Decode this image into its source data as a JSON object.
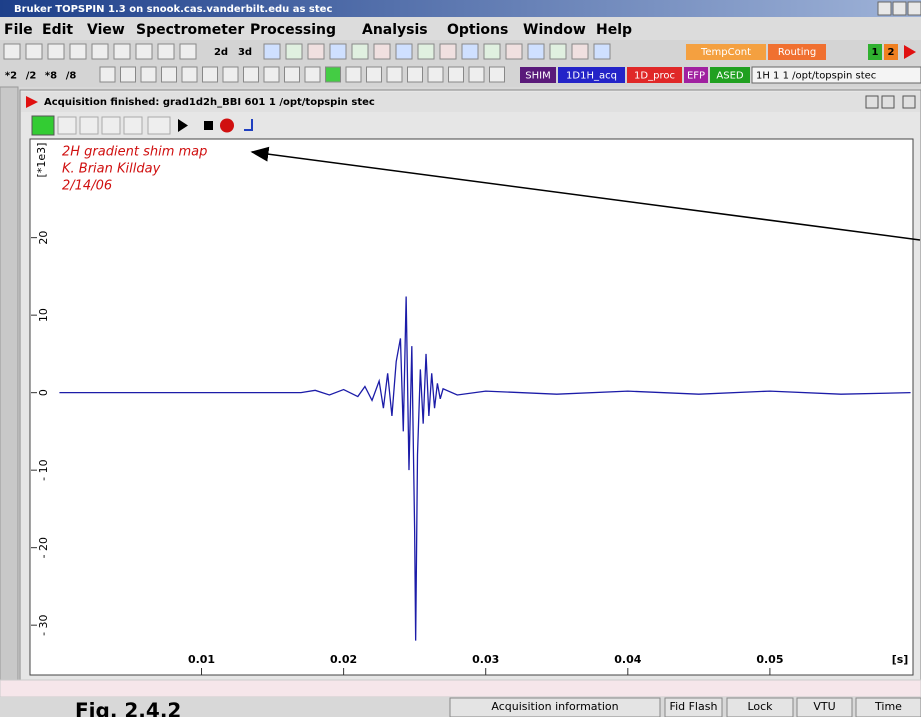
{
  "window": {
    "title": "Bruker TOPSPIN 1.3 on snook.cas.vanderbilt.edu as stec"
  },
  "menu": [
    "File",
    "Edit",
    "View",
    "Spectrometer",
    "Processing",
    "Analysis",
    "Options",
    "Window",
    "Help"
  ],
  "toolbar": {
    "items": [
      "2d",
      "3d",
      "TempCont",
      "Routing",
      "1",
      "2"
    ]
  },
  "toolbar2": {
    "items": [
      "*2",
      "/2",
      "*8",
      "/8",
      "SHIM",
      "1D1H_acq",
      "1D_proc",
      "EFP",
      "ASED",
      "1H 1 1 /opt/topspin stec"
    ]
  },
  "panel": {
    "title": "Acquisition finished: grad1d2h_BBI 601 1 /opt/topspin stec"
  },
  "chart_data": {
    "type": "line",
    "annotations": [
      "2H gradient shim map",
      "K. Brian Killday",
      "2/14/06"
    ],
    "x_unit_label": "[s]",
    "y_unit_label": "[*1e3]",
    "color": "#1c1ca8",
    "x": [
      0,
      0.017,
      0.018,
      0.019,
      0.02,
      0.021,
      0.0215,
      0.022,
      0.0225,
      0.0228,
      0.0231,
      0.0234,
      0.0237,
      0.024,
      0.0242,
      0.0244,
      0.0246,
      0.0248,
      0.025,
      0.02507,
      0.0252,
      0.0254,
      0.0256,
      0.0258,
      0.026,
      0.0262,
      0.0264,
      0.0266,
      0.0268,
      0.027,
      0.028,
      0.03,
      0.035,
      0.04,
      0.045,
      0.05,
      0.055,
      0.0599
    ],
    "values": [
      0,
      0,
      0.3,
      -0.3,
      0.4,
      -0.5,
      0.8,
      -1.0,
      1.5,
      -2.0,
      2.5,
      -3,
      4,
      7,
      -5,
      12.4,
      -10,
      6,
      -18,
      -32,
      -8,
      3,
      -4,
      5,
      -3,
      2.5,
      -2,
      1.2,
      -0.8,
      0.5,
      -0.3,
      0.2,
      -0.2,
      0.2,
      -0.2,
      0.2,
      -0.2,
      0
    ],
    "xlim": [
      -0.002,
      0.06
    ],
    "ylim": [
      -32.3,
      32.6
    ],
    "xticks": [
      0.01,
      0.02,
      0.03,
      0.04,
      0.05
    ],
    "yticks": [
      20,
      10,
      0,
      {
        "value": -10,
        "label": "- 10"
      },
      {
        "value": -20,
        "label": "- 20"
      },
      {
        "value": -30,
        "label": "- 30"
      }
    ]
  },
  "status": [
    "Acquisition information",
    "Fid Flash",
    "Lock",
    "VTU",
    "Time"
  ],
  "caption": "Fig. 2.4.2"
}
